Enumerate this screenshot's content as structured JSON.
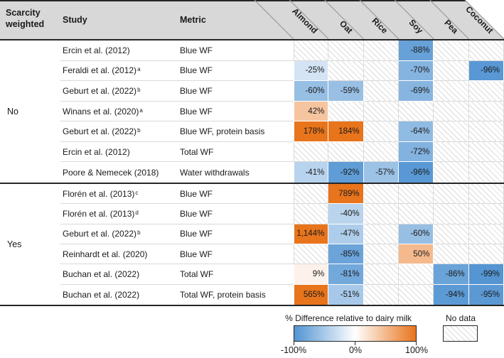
{
  "header": {
    "scarcity": "Scarcity weighted",
    "study": "Study",
    "metric": "Metric"
  },
  "chart_data": {
    "type": "heatmap",
    "unit": "% difference relative to dairy milk",
    "columns": [
      "Almond",
      "Oat",
      "Rice",
      "Soy",
      "Pea",
      "Coconut"
    ],
    "color_scale": {
      "min": -100,
      "mid": 0,
      "max": 100,
      "min_color": "#5294D2",
      "mid_color": "#FFFFFF",
      "max_color": "#E8741C"
    },
    "no_data_pattern": "diagonal-hatch",
    "sections": [
      {
        "scarcity_weighted": "No",
        "rows": [
          {
            "study": "Ercin et al. (2012)",
            "sup": "",
            "metric": "Blue WF",
            "values": [
              null,
              null,
              null,
              -88,
              null,
              null
            ],
            "labels": [
              "",
              "",
              "",
              "-88%",
              "",
              ""
            ]
          },
          {
            "study": "Feraldi et al. (2012)",
            "sup": "a",
            "metric": "Blue WF",
            "values": [
              -25,
              null,
              null,
              -70,
              null,
              -96
            ],
            "labels": [
              "-25%",
              "",
              "",
              "-70%",
              "",
              "-96%"
            ]
          },
          {
            "study": "Geburt et al. (2022)",
            "sup": "b",
            "metric": "Blue WF",
            "values": [
              -60,
              -59,
              null,
              -69,
              null,
              null
            ],
            "labels": [
              "-60%",
              "-59%",
              "",
              "-69%",
              "",
              ""
            ]
          },
          {
            "study": "Winans et al. (2020)",
            "sup": "a",
            "metric": "Blue WF",
            "values": [
              42,
              null,
              null,
              null,
              null,
              null
            ],
            "labels": [
              "42%",
              "",
              "",
              "",
              "",
              ""
            ]
          },
          {
            "study": "Geburt et al. (2022)",
            "sup": "b",
            "metric": "Blue WF, protein basis",
            "values": [
              178,
              184,
              null,
              -64,
              null,
              null
            ],
            "labels": [
              "178%",
              "184%",
              "",
              "-64%",
              "",
              ""
            ]
          },
          {
            "study": "Ercin et al. (2012)",
            "sup": "",
            "metric": "Total WF",
            "values": [
              null,
              null,
              null,
              -72,
              null,
              null
            ],
            "labels": [
              "",
              "",
              "",
              "-72%",
              "",
              ""
            ]
          },
          {
            "study": "Poore & Nemecek (2018)",
            "sup": "",
            "metric": "Water withdrawals",
            "values": [
              -41,
              -92,
              -57,
              -96,
              null,
              null
            ],
            "labels": [
              "-41%",
              "-92%",
              "-57%",
              "-96%",
              "",
              ""
            ]
          }
        ]
      },
      {
        "scarcity_weighted": "Yes",
        "rows": [
          {
            "study": "Florén et al. (2013)",
            "sup": "c",
            "metric": "Blue WF",
            "values": [
              null,
              789,
              null,
              null,
              null,
              null
            ],
            "labels": [
              "",
              "789%",
              "",
              "",
              "",
              ""
            ]
          },
          {
            "study": "Florén et al. (2013)",
            "sup": "d",
            "metric": "Blue WF",
            "values": [
              null,
              -40,
              null,
              null,
              null,
              null
            ],
            "labels": [
              "",
              "-40%",
              "",
              "",
              "",
              ""
            ]
          },
          {
            "study": "Geburt et al. (2022)",
            "sup": "b",
            "metric": "Blue WF",
            "values": [
              1144,
              -47,
              null,
              -60,
              null,
              null
            ],
            "labels": [
              "1,144%",
              "-47%",
              "",
              "-60%",
              "",
              ""
            ]
          },
          {
            "study": "Reinhardt et al. (2020)",
            "sup": "",
            "metric": "Blue WF",
            "values": [
              null,
              -85,
              null,
              50,
              null,
              null
            ],
            "labels": [
              "",
              "-85%",
              "",
              "50%",
              "",
              ""
            ]
          },
          {
            "study": "Buchan et al. (2022)",
            "sup": "",
            "metric": "Total WF",
            "values": [
              9,
              -81,
              null,
              null,
              -86,
              -99
            ],
            "labels": [
              "9%",
              "-81%",
              "",
              "",
              "-86%",
              "-99%"
            ]
          },
          {
            "study": "Buchan et al. (2022)",
            "sup": "",
            "metric": "Total WF, protein basis",
            "values": [
              565,
              -51,
              null,
              null,
              -94,
              -95
            ],
            "labels": [
              "565%",
              "-51%",
              "",
              "",
              "-94%",
              "-95%"
            ]
          }
        ]
      }
    ]
  },
  "legend": {
    "title": "% Difference relative to dairy milk",
    "ticks": [
      "-100%",
      "0%",
      "100%"
    ],
    "no_data": "No data"
  }
}
